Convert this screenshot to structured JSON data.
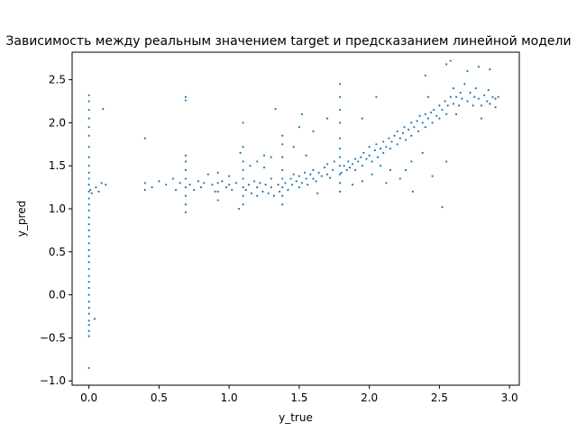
{
  "chart_data": {
    "type": "scatter",
    "title": "Зависимость между реальным значением target и предсказанием линейной модели",
    "xlabel": "y_true",
    "ylabel": "y_pred",
    "xlim": [
      -0.12,
      3.07
    ],
    "ylim": [
      -1.05,
      2.82
    ],
    "xticks": [
      0.0,
      0.5,
      1.0,
      1.5,
      2.0,
      2.5,
      3.0
    ],
    "xtick_labels": [
      "0.0",
      "0.5",
      "1.0",
      "1.5",
      "2.0",
      "2.5",
      "3.0"
    ],
    "yticks": [
      -1.0,
      -0.5,
      0.0,
      0.5,
      1.0,
      1.5,
      2.0,
      2.5
    ],
    "yticks_labels": [
      "−1.0",
      "−0.5",
      "0.0",
      "0.5",
      "1.0",
      "1.5",
      "2.0",
      "2.5"
    ],
    "marker_color": "#1f77b4",
    "grid": false,
    "series": [
      {
        "points": [
          [
            0.0,
            -0.85
          ],
          [
            0.0,
            -0.48
          ],
          [
            0.0,
            -0.42
          ],
          [
            0.0,
            -0.35
          ],
          [
            0.0,
            -0.3
          ],
          [
            0.0,
            -0.22
          ],
          [
            0.0,
            -0.15
          ],
          [
            0.0,
            -0.08
          ],
          [
            0.0,
            0.0
          ],
          [
            0.0,
            0.08
          ],
          [
            0.0,
            0.15
          ],
          [
            0.0,
            0.22
          ],
          [
            0.0,
            0.3
          ],
          [
            0.0,
            0.38
          ],
          [
            0.0,
            0.45
          ],
          [
            0.0,
            0.52
          ],
          [
            0.0,
            0.6
          ],
          [
            0.0,
            0.68
          ],
          [
            0.0,
            0.75
          ],
          [
            0.0,
            0.82
          ],
          [
            0.0,
            0.9
          ],
          [
            0.0,
            0.98
          ],
          [
            0.0,
            1.05
          ],
          [
            0.0,
            1.12
          ],
          [
            0.0,
            1.2
          ],
          [
            0.0,
            1.28
          ],
          [
            0.0,
            1.35
          ],
          [
            0.0,
            1.42
          ],
          [
            0.0,
            1.5
          ],
          [
            0.0,
            1.6
          ],
          [
            0.0,
            1.72
          ],
          [
            0.0,
            1.85
          ],
          [
            0.0,
            1.95
          ],
          [
            0.0,
            2.05
          ],
          [
            0.0,
            2.15
          ],
          [
            0.0,
            2.25
          ],
          [
            0.0,
            2.32
          ],
          [
            0.01,
            1.22
          ],
          [
            0.02,
            1.18
          ],
          [
            0.04,
            -0.28
          ],
          [
            0.05,
            1.25
          ],
          [
            0.07,
            1.2
          ],
          [
            0.09,
            1.3
          ],
          [
            0.1,
            2.16
          ],
          [
            0.12,
            1.28
          ],
          [
            0.4,
            1.82
          ],
          [
            0.4,
            1.3
          ],
          [
            0.4,
            1.22
          ],
          [
            0.45,
            1.25
          ],
          [
            0.5,
            1.32
          ],
          [
            0.55,
            1.28
          ],
          [
            0.6,
            1.35
          ],
          [
            0.62,
            1.22
          ],
          [
            0.65,
            1.3
          ],
          [
            0.69,
            0.96
          ],
          [
            0.69,
            1.05
          ],
          [
            0.69,
            1.15
          ],
          [
            0.69,
            1.25
          ],
          [
            0.69,
            1.35
          ],
          [
            0.69,
            1.45
          ],
          [
            0.69,
            1.55
          ],
          [
            0.69,
            1.62
          ],
          [
            0.69,
            2.26
          ],
          [
            0.69,
            2.3
          ],
          [
            0.72,
            1.28
          ],
          [
            0.75,
            1.22
          ],
          [
            0.78,
            1.32
          ],
          [
            0.8,
            1.25
          ],
          [
            0.82,
            1.3
          ],
          [
            0.85,
            1.4
          ],
          [
            0.88,
            1.28
          ],
          [
            0.9,
            1.2
          ],
          [
            0.92,
            1.1
          ],
          [
            0.92,
            1.2
          ],
          [
            0.92,
            1.3
          ],
          [
            0.92,
            1.42
          ],
          [
            0.95,
            1.32
          ],
          [
            0.98,
            1.25
          ],
          [
            1.0,
            1.38
          ],
          [
            1.0,
            1.28
          ],
          [
            1.02,
            1.22
          ],
          [
            1.05,
            1.3
          ],
          [
            1.07,
            1.0
          ],
          [
            1.08,
            1.65
          ],
          [
            1.1,
            1.05
          ],
          [
            1.1,
            1.15
          ],
          [
            1.1,
            1.25
          ],
          [
            1.1,
            1.35
          ],
          [
            1.1,
            1.45
          ],
          [
            1.1,
            1.55
          ],
          [
            1.1,
            1.72
          ],
          [
            1.1,
            2.0
          ],
          [
            1.12,
            1.22
          ],
          [
            1.14,
            1.28
          ],
          [
            1.16,
            1.18
          ],
          [
            1.18,
            1.32
          ],
          [
            1.2,
            1.25
          ],
          [
            1.2,
            1.15
          ],
          [
            1.22,
            1.3
          ],
          [
            1.24,
            1.2
          ],
          [
            1.25,
            1.62
          ],
          [
            1.26,
            1.28
          ],
          [
            1.28,
            1.18
          ],
          [
            1.3,
            1.35
          ],
          [
            1.3,
            1.25
          ],
          [
            1.32,
            1.15
          ],
          [
            1.33,
            2.16
          ],
          [
            1.35,
            1.28
          ],
          [
            1.36,
            1.2
          ],
          [
            1.38,
            1.05
          ],
          [
            1.38,
            1.15
          ],
          [
            1.38,
            1.25
          ],
          [
            1.38,
            1.35
          ],
          [
            1.38,
            1.45
          ],
          [
            1.38,
            1.6
          ],
          [
            1.38,
            1.75
          ],
          [
            1.38,
            1.85
          ],
          [
            1.4,
            1.3
          ],
          [
            1.42,
            1.22
          ],
          [
            1.44,
            1.35
          ],
          [
            1.45,
            1.28
          ],
          [
            1.46,
            1.4
          ],
          [
            1.48,
            1.32
          ],
          [
            1.5,
            1.25
          ],
          [
            1.5,
            1.38
          ],
          [
            1.52,
            1.3
          ],
          [
            1.54,
            1.42
          ],
          [
            1.55,
            1.35
          ],
          [
            1.56,
            1.28
          ],
          [
            1.58,
            1.4
          ],
          [
            1.6,
            1.35
          ],
          [
            1.6,
            1.45
          ],
          [
            1.62,
            1.32
          ],
          [
            1.63,
            1.18
          ],
          [
            1.64,
            1.42
          ],
          [
            1.66,
            1.38
          ],
          [
            1.68,
            1.48
          ],
          [
            1.7,
            1.4
          ],
          [
            1.7,
            1.52
          ],
          [
            1.72,
            1.36
          ],
          [
            1.74,
            1.45
          ],
          [
            1.75,
            1.55
          ],
          [
            1.79,
            1.2
          ],
          [
            1.79,
            1.3
          ],
          [
            1.79,
            1.4
          ],
          [
            1.79,
            1.5
          ],
          [
            1.79,
            1.6
          ],
          [
            1.79,
            1.7
          ],
          [
            1.79,
            1.82
          ],
          [
            1.79,
            2.0
          ],
          [
            1.79,
            2.15
          ],
          [
            1.79,
            2.3
          ],
          [
            1.79,
            2.45
          ],
          [
            1.8,
            1.42
          ],
          [
            1.82,
            1.5
          ],
          [
            1.84,
            1.45
          ],
          [
            1.85,
            1.55
          ],
          [
            1.86,
            1.48
          ],
          [
            1.88,
            1.52
          ],
          [
            1.9,
            1.58
          ],
          [
            1.9,
            1.45
          ],
          [
            1.92,
            1.55
          ],
          [
            1.94,
            1.6
          ],
          [
            1.95,
            1.5
          ],
          [
            1.96,
            1.65
          ],
          [
            1.98,
            1.58
          ],
          [
            2.0,
            1.62
          ],
          [
            2.0,
            1.72
          ],
          [
            2.02,
            1.55
          ],
          [
            2.04,
            1.68
          ],
          [
            2.05,
            1.75
          ],
          [
            2.06,
            1.6
          ],
          [
            2.08,
            1.7
          ],
          [
            2.1,
            1.78
          ],
          [
            2.1,
            1.65
          ],
          [
            2.12,
            1.72
          ],
          [
            2.14,
            1.82
          ],
          [
            2.15,
            1.7
          ],
          [
            2.16,
            1.78
          ],
          [
            2.18,
            1.85
          ],
          [
            2.2,
            1.75
          ],
          [
            2.2,
            1.9
          ],
          [
            2.22,
            1.82
          ],
          [
            2.24,
            1.88
          ],
          [
            2.25,
            1.95
          ],
          [
            2.26,
            1.8
          ],
          [
            2.28,
            1.92
          ],
          [
            2.3,
            2.0
          ],
          [
            2.3,
            1.85
          ],
          [
            2.32,
            1.95
          ],
          [
            2.34,
            2.02
          ],
          [
            2.35,
            1.9
          ],
          [
            2.36,
            2.08
          ],
          [
            2.38,
            2.0
          ],
          [
            2.4,
            2.1
          ],
          [
            2.4,
            1.95
          ],
          [
            2.42,
            2.05
          ],
          [
            2.44,
            2.12
          ],
          [
            2.45,
            2.0
          ],
          [
            2.46,
            2.15
          ],
          [
            2.48,
            2.08
          ],
          [
            2.5,
            2.2
          ],
          [
            2.5,
            2.05
          ],
          [
            2.52,
            2.15
          ],
          [
            2.54,
            2.25
          ],
          [
            2.55,
            2.1
          ],
          [
            2.56,
            2.2
          ],
          [
            2.58,
            2.3
          ],
          [
            2.6,
            2.22
          ],
          [
            2.6,
            2.4
          ],
          [
            2.62,
            2.3
          ],
          [
            2.64,
            2.2
          ],
          [
            2.65,
            2.35
          ],
          [
            2.66,
            2.28
          ],
          [
            2.68,
            2.45
          ],
          [
            2.7,
            2.25
          ],
          [
            2.72,
            2.35
          ],
          [
            2.74,
            2.2
          ],
          [
            2.75,
            2.3
          ],
          [
            2.76,
            2.4
          ],
          [
            2.78,
            2.28
          ],
          [
            2.8,
            2.05
          ],
          [
            2.8,
            2.2
          ],
          [
            2.82,
            2.32
          ],
          [
            2.84,
            2.25
          ],
          [
            2.85,
            2.38
          ],
          [
            2.86,
            2.22
          ],
          [
            2.88,
            2.3
          ],
          [
            2.9,
            2.28
          ],
          [
            2.9,
            2.18
          ],
          [
            2.22,
            1.35
          ],
          [
            2.26,
            1.45
          ],
          [
            2.31,
            1.2
          ],
          [
            2.38,
            1.65
          ],
          [
            2.45,
            1.38
          ],
          [
            2.52,
            1.02
          ],
          [
            2.55,
            1.55
          ],
          [
            2.58,
            2.72
          ],
          [
            2.55,
            2.68
          ],
          [
            2.4,
            2.55
          ],
          [
            2.42,
            2.3
          ],
          [
            1.95,
            2.05
          ],
          [
            2.05,
            2.3
          ],
          [
            1.5,
            1.95
          ],
          [
            1.52,
            2.1
          ],
          [
            1.6,
            1.9
          ],
          [
            1.7,
            2.05
          ],
          [
            1.2,
            1.55
          ],
          [
            1.25,
            1.48
          ],
          [
            1.15,
            1.5
          ],
          [
            1.3,
            1.6
          ],
          [
            1.46,
            1.72
          ],
          [
            1.55,
            1.62
          ],
          [
            2.15,
            1.45
          ],
          [
            2.3,
            1.55
          ],
          [
            2.62,
            2.1
          ],
          [
            2.7,
            2.6
          ],
          [
            2.78,
            2.65
          ],
          [
            2.86,
            2.62
          ],
          [
            2.92,
            2.3
          ],
          [
            2.12,
            1.3
          ],
          [
            2.02,
            1.4
          ],
          [
            1.88,
            1.28
          ],
          [
            1.95,
            1.32
          ],
          [
            2.08,
            1.5
          ]
        ]
      }
    ]
  }
}
